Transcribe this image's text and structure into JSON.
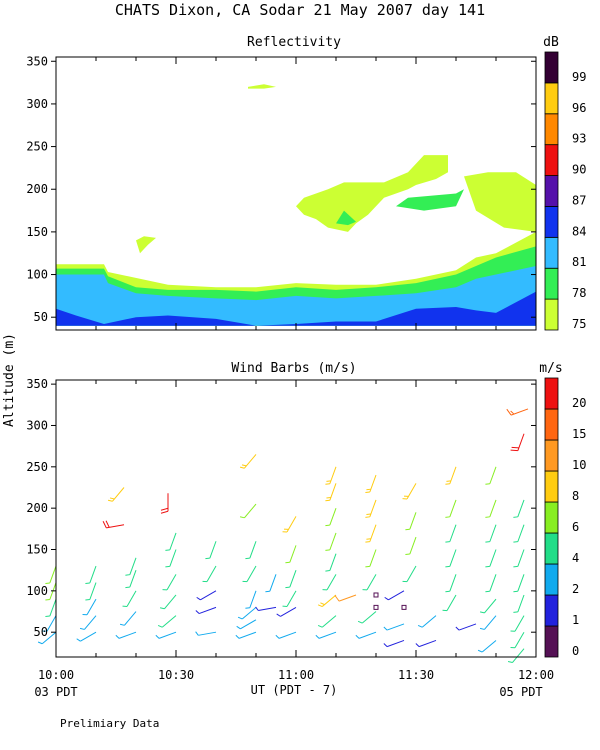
{
  "header": {
    "title": "CHATS Dixon, CA  Sodar  21 May 2007  day 141"
  },
  "shared": {
    "ylabel": "Altitude (m)",
    "xlabel": "UT  (PDT - 7)",
    "left_note": "03 PDT",
    "right_note": "05 PDT",
    "footer": "Prelimiary Data"
  },
  "chart_data": [
    {
      "type": "heatmap",
      "title": "Reflectivity",
      "units": "dB",
      "ylim": [
        35,
        355
      ],
      "yticks": [
        50,
        100,
        150,
        200,
        250,
        300,
        350
      ],
      "xlim": [
        0,
        120
      ],
      "colorbar": {
        "levels": [
          75,
          78,
          81,
          84,
          87,
          90,
          93,
          96,
          99
        ],
        "colors": [
          "#ccff33",
          "#33ee55",
          "#33bbff",
          "#1133ee",
          "#5511aa",
          "#ee1111",
          "#ff8800",
          "#ffcc11",
          "#330033"
        ]
      },
      "layers": [
        {
          "level": 75,
          "regions": [
            {
              "x": [
                0,
                12,
                13,
                28,
                40,
                50,
                60,
                70,
                80,
                90,
                100,
                105,
                110,
                112,
                120,
                120,
                0
              ],
              "y": [
                112,
                112,
                103,
                88,
                85,
                85,
                90,
                88,
                88,
                95,
                105,
                120,
                125,
                130,
                150,
                40,
                40
              ]
            },
            {
              "x": [
                60,
                62,
                65,
                68,
                72,
                82,
                88,
                92,
                98,
                98,
                95,
                90,
                88,
                82,
                78,
                75,
                73,
                68,
                65,
                62
              ],
              "y": [
                180,
                190,
                195,
                200,
                208,
                208,
                220,
                240,
                240,
                220,
                212,
                205,
                200,
                190,
                170,
                160,
                150,
                155,
                165,
                170
              ]
            },
            {
              "x": [
                102,
                108,
                115,
                120,
                120,
                112,
                105
              ],
              "y": [
                215,
                220,
                220,
                205,
                150,
                155,
                175
              ]
            },
            {
              "x": [
                20,
                22,
                25,
                23,
                21
              ],
              "y": [
                140,
                145,
                143,
                135,
                125
              ]
            },
            {
              "x": [
                48,
                52,
                55,
                52,
                48
              ],
              "y": [
                320,
                323,
                320,
                318,
                318
              ]
            }
          ]
        },
        {
          "level": 78,
          "regions": [
            {
              "x": [
                0,
                12,
                13,
                20,
                28,
                40,
                50,
                60,
                70,
                80,
                90,
                100,
                105,
                110,
                120,
                120,
                0
              ],
              "y": [
                107,
                107,
                98,
                85,
                82,
                82,
                80,
                85,
                82,
                85,
                90,
                100,
                110,
                120,
                133,
                40,
                40
              ]
            },
            {
              "x": [
                85,
                88,
                100,
                102,
                100,
                92
              ],
              "y": [
                180,
                190,
                195,
                200,
                180,
                175
              ]
            },
            {
              "x": [
                70,
                72,
                75,
                73
              ],
              "y": [
                160,
                175,
                162,
                158
              ]
            }
          ]
        },
        {
          "level": 81,
          "regions": [
            {
              "x": [
                0,
                12,
                13,
                20,
                28,
                40,
                50,
                60,
                70,
                80,
                90,
                100,
                105,
                110,
                120,
                120,
                0
              ],
              "y": [
                100,
                100,
                90,
                78,
                75,
                72,
                70,
                75,
                72,
                75,
                78,
                85,
                95,
                100,
                110,
                40,
                40
              ]
            }
          ]
        },
        {
          "level": 84,
          "regions": [
            {
              "x": [
                0,
                5,
                12,
                20,
                28,
                40,
                50,
                60,
                70,
                80,
                90,
                100,
                105,
                110,
                120,
                120,
                0
              ],
              "y": [
                60,
                52,
                42,
                50,
                52,
                48,
                40,
                42,
                45,
                45,
                60,
                62,
                58,
                55,
                80,
                40,
                40
              ]
            }
          ]
        }
      ]
    },
    {
      "type": "wind_barbs",
      "title": "Wind Barbs (m/s)",
      "units": "m/s",
      "ylim": [
        20,
        355
      ],
      "yticks": [
        50,
        100,
        150,
        200,
        250,
        300,
        350
      ],
      "xlim": [
        0,
        120
      ],
      "xticks": [
        "10:00",
        "10:30",
        "11:00",
        "11:30",
        "12:00"
      ],
      "colorbar": {
        "levels": [
          0,
          1,
          2,
          4,
          6,
          8,
          10,
          15,
          20
        ],
        "colors": [
          "#551155",
          "#2222dd",
          "#11aaee",
          "#22dd88",
          "#88ee22",
          "#ffcc11",
          "#ff9922",
          "#ff6611",
          "#ee1111"
        ]
      },
      "barbs": [
        {
          "t": 0,
          "z": 50,
          "s": 2.5,
          "d": 230
        },
        {
          "t": 0,
          "z": 70,
          "s": 3,
          "d": 210
        },
        {
          "t": 0,
          "z": 90,
          "s": 5,
          "d": 200
        },
        {
          "t": 0,
          "z": 110,
          "s": 7,
          "d": 200
        },
        {
          "t": 0,
          "z": 130,
          "s": 7,
          "d": 200
        },
        {
          "t": 10,
          "z": 50,
          "s": 2.5,
          "d": 240
        },
        {
          "t": 10,
          "z": 70,
          "s": 3,
          "d": 220
        },
        {
          "t": 10,
          "z": 90,
          "s": 3,
          "d": 210
        },
        {
          "t": 10,
          "z": 110,
          "s": 5,
          "d": 200
        },
        {
          "t": 10,
          "z": 130,
          "s": 5,
          "d": 200
        },
        {
          "t": 17,
          "z": 180,
          "s": 20,
          "d": 260
        },
        {
          "t": 17,
          "z": 225,
          "s": 8,
          "d": 220
        },
        {
          "t": 20,
          "z": 50,
          "s": 3,
          "d": 250
        },
        {
          "t": 20,
          "z": 75,
          "s": 3,
          "d": 220
        },
        {
          "t": 20,
          "z": 100,
          "s": 5,
          "d": 210
        },
        {
          "t": 20,
          "z": 125,
          "s": 5,
          "d": 200
        },
        {
          "t": 20,
          "z": 140,
          "s": 5,
          "d": 200
        },
        {
          "t": 28,
          "z": 218,
          "s": 20,
          "d": 180
        },
        {
          "t": 30,
          "z": 50,
          "s": 2.5,
          "d": 250
        },
        {
          "t": 30,
          "z": 70,
          "s": 5,
          "d": 230
        },
        {
          "t": 30,
          "z": 95,
          "s": 5,
          "d": 220
        },
        {
          "t": 30,
          "z": 120,
          "s": 5,
          "d": 210
        },
        {
          "t": 30,
          "z": 150,
          "s": 5,
          "d": 200
        },
        {
          "t": 30,
          "z": 170,
          "s": 5,
          "d": 200
        },
        {
          "t": 40,
          "z": 50,
          "s": 2,
          "d": 260
        },
        {
          "t": 40,
          "z": 80,
          "s": 1.5,
          "d": 250
        },
        {
          "t": 40,
          "z": 100,
          "s": 1.5,
          "d": 240
        },
        {
          "t": 40,
          "z": 130,
          "s": 4,
          "d": 210
        },
        {
          "t": 40,
          "z": 160,
          "s": 5,
          "d": 200
        },
        {
          "t": 50,
          "z": 50,
          "s": 2.5,
          "d": 250
        },
        {
          "t": 50,
          "z": 65,
          "s": 2.5,
          "d": 240
        },
        {
          "t": 50,
          "z": 80,
          "s": 3,
          "d": 230
        },
        {
          "t": 50,
          "z": 100,
          "s": 2,
          "d": 200
        },
        {
          "t": 50,
          "z": 130,
          "s": 4,
          "d": 210
        },
        {
          "t": 50,
          "z": 160,
          "s": 5,
          "d": 200
        },
        {
          "t": 50,
          "z": 205,
          "s": 7,
          "d": 220
        },
        {
          "t": 50,
          "z": 265,
          "s": 8,
          "d": 220
        },
        {
          "t": 55,
          "z": 80,
          "s": 1.5,
          "d": 260
        },
        {
          "t": 55,
          "z": 120,
          "s": 2.5,
          "d": 200
        },
        {
          "t": 60,
          "z": 50,
          "s": 3,
          "d": 250
        },
        {
          "t": 60,
          "z": 80,
          "s": 1.5,
          "d": 240
        },
        {
          "t": 60,
          "z": 100,
          "s": 5,
          "d": 210
        },
        {
          "t": 60,
          "z": 125,
          "s": 5,
          "d": 200
        },
        {
          "t": 60,
          "z": 155,
          "s": 7,
          "d": 200
        },
        {
          "t": 60,
          "z": 190,
          "s": 8,
          "d": 210
        },
        {
          "t": 70,
          "z": 50,
          "s": 3,
          "d": 250
        },
        {
          "t": 70,
          "z": 70,
          "s": 5,
          "d": 230
        },
        {
          "t": 70,
          "z": 95,
          "s": 8,
          "d": 230
        },
        {
          "t": 70,
          "z": 120,
          "s": 5,
          "d": 210
        },
        {
          "t": 70,
          "z": 145,
          "s": 5,
          "d": 200
        },
        {
          "t": 70,
          "z": 170,
          "s": 7,
          "d": 200
        },
        {
          "t": 70,
          "z": 200,
          "s": 7,
          "d": 200
        },
        {
          "t": 70,
          "z": 230,
          "s": 8,
          "d": 200
        },
        {
          "t": 70,
          "z": 250,
          "s": 8,
          "d": 200
        },
        {
          "t": 75,
          "z": 95,
          "s": 10,
          "d": 250
        },
        {
          "t": 80,
          "z": 50,
          "s": 3,
          "d": 250
        },
        {
          "t": 80,
          "z": 75,
          "s": 5,
          "d": 230
        },
        {
          "t": 80,
          "z": 95,
          "s": 0,
          "d": 0
        },
        {
          "t": 80,
          "z": 80,
          "s": 0,
          "d": 0
        },
        {
          "t": 80,
          "z": 120,
          "s": 5,
          "d": 210
        },
        {
          "t": 80,
          "z": 150,
          "s": 7,
          "d": 200
        },
        {
          "t": 80,
          "z": 180,
          "s": 8,
          "d": 200
        },
        {
          "t": 80,
          "z": 210,
          "s": 8,
          "d": 200
        },
        {
          "t": 80,
          "z": 240,
          "s": 8,
          "d": 200
        },
        {
          "t": 87,
          "z": 60,
          "s": 3,
          "d": 250
        },
        {
          "t": 87,
          "z": 80,
          "s": 0,
          "d": 0
        },
        {
          "t": 87,
          "z": 100,
          "s": 1.5,
          "d": 240
        },
        {
          "t": 87,
          "z": 40,
          "s": 1.5,
          "d": 250
        },
        {
          "t": 90,
          "z": 130,
          "s": 5,
          "d": 210
        },
        {
          "t": 90,
          "z": 165,
          "s": 7,
          "d": 200
        },
        {
          "t": 90,
          "z": 195,
          "s": 7,
          "d": 200
        },
        {
          "t": 90,
          "z": 230,
          "s": 8,
          "d": 210
        },
        {
          "t": 95,
          "z": 40,
          "s": 1.5,
          "d": 250
        },
        {
          "t": 95,
          "z": 70,
          "s": 3,
          "d": 230
        },
        {
          "t": 100,
          "z": 95,
          "s": 5,
          "d": 210
        },
        {
          "t": 100,
          "z": 120,
          "s": 5,
          "d": 200
        },
        {
          "t": 100,
          "z": 150,
          "s": 5,
          "d": 200
        },
        {
          "t": 100,
          "z": 180,
          "s": 5,
          "d": 200
        },
        {
          "t": 100,
          "z": 210,
          "s": 7,
          "d": 200
        },
        {
          "t": 100,
          "z": 250,
          "s": 8,
          "d": 200
        },
        {
          "t": 105,
          "z": 60,
          "s": 1.5,
          "d": 250
        },
        {
          "t": 110,
          "z": 40,
          "s": 3,
          "d": 230
        },
        {
          "t": 110,
          "z": 70,
          "s": 3,
          "d": 220
        },
        {
          "t": 110,
          "z": 90,
          "s": 5,
          "d": 220
        },
        {
          "t": 110,
          "z": 120,
          "s": 5,
          "d": 200
        },
        {
          "t": 110,
          "z": 150,
          "s": 5,
          "d": 200
        },
        {
          "t": 110,
          "z": 180,
          "s": 5,
          "d": 200
        },
        {
          "t": 110,
          "z": 210,
          "s": 7,
          "d": 200
        },
        {
          "t": 110,
          "z": 250,
          "s": 7,
          "d": 200
        },
        {
          "t": 117,
          "z": 30,
          "s": 4,
          "d": 220
        },
        {
          "t": 117,
          "z": 50,
          "s": 5,
          "d": 210
        },
        {
          "t": 117,
          "z": 70,
          "s": 5,
          "d": 210
        },
        {
          "t": 117,
          "z": 95,
          "s": 5,
          "d": 200
        },
        {
          "t": 117,
          "z": 120,
          "s": 5,
          "d": 200
        },
        {
          "t": 117,
          "z": 150,
          "s": 5,
          "d": 200
        },
        {
          "t": 117,
          "z": 180,
          "s": 5,
          "d": 200
        },
        {
          "t": 117,
          "z": 210,
          "s": 5,
          "d": 200
        },
        {
          "t": 117,
          "z": 290,
          "s": 20,
          "d": 200
        },
        {
          "t": 118,
          "z": 320,
          "s": 15,
          "d": 250
        }
      ]
    }
  ]
}
